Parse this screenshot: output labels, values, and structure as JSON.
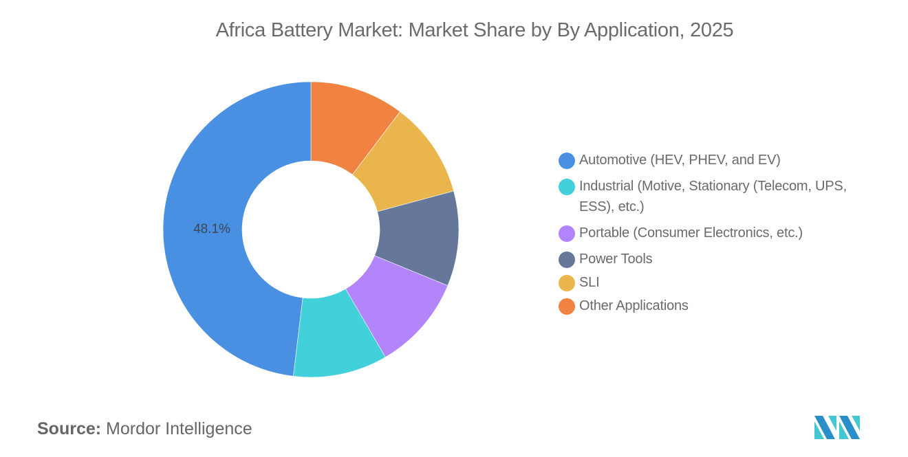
{
  "title": "Africa Battery Market: Market Share by By Application, 2025",
  "source": {
    "label": "Source:",
    "value": "Mordor Intelligence"
  },
  "logo": {
    "icon": "mordor-intelligence-logo-icon"
  },
  "chart_data": {
    "type": "pie",
    "subtype": "donut",
    "title": "Africa Battery Market: Market Share by By Application, 2025",
    "start_angle_deg": 0,
    "direction": "counterclockwise-from-legend-order (drawn clockwise from top: Other, SLI, Power Tools, Portable, Industrial, Automotive)",
    "legend_position": "right",
    "labels": [
      "Automotive (HEV, PHEV, and EV)",
      "Industrial (Motive, Stationary (Telecom, UPS, ESS), etc.)",
      "Portable (Consumer Electronics, etc.)",
      "Power Tools",
      "SLI",
      "Other Applications"
    ],
    "values": [
      48.1,
      10.3,
      10.4,
      10.4,
      10.5,
      10.3
    ],
    "colors": [
      "#4A90E2",
      "#42D0DB",
      "#B286FA",
      "#66789A",
      "#EBB54D",
      "#F08342"
    ],
    "data_labels": [
      {
        "series": "Automotive (HEV, PHEV, and EV)",
        "text": "48.1%"
      }
    ]
  },
  "legend": {
    "items": [
      {
        "label": "Automotive (HEV, PHEV, and EV)",
        "color": "#4A90E2"
      },
      {
        "label": "Industrial (Motive, Stationary (Telecom, UPS, ESS), etc.)",
        "color": "#42D0DB"
      },
      {
        "label": "Portable (Consumer Electronics, etc.)",
        "color": "#B286FA"
      },
      {
        "label": "Power Tools",
        "color": "#66789A"
      },
      {
        "label": "SLI",
        "color": "#EBB54D"
      },
      {
        "label": "Other Applications",
        "color": "#F08342"
      }
    ]
  }
}
